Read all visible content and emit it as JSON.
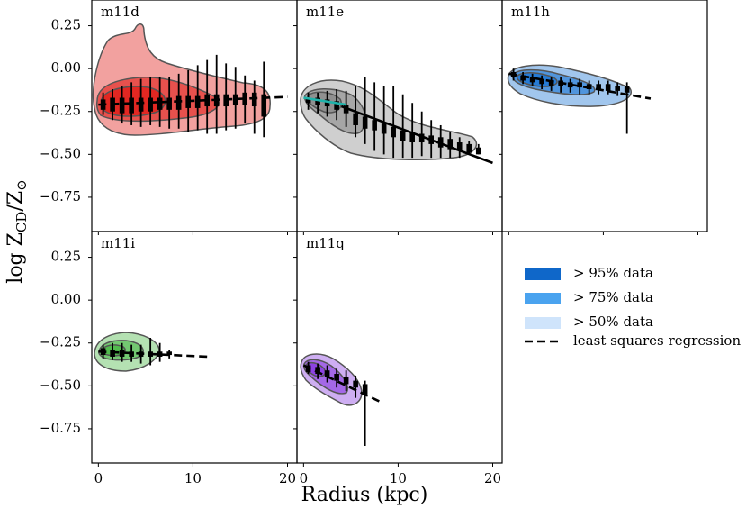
{
  "figure": {
    "xlabel": "Radius (kpc)",
    "ylabel": {
      "parts": [
        "log Z",
        "CD",
        "/Z",
        "⊙"
      ]
    },
    "legend": [
      {
        "name": "> 95% data",
        "color": "#0f67c9"
      },
      {
        "name": "> 75% data",
        "color": "#4aa3ef"
      },
      {
        "name": "> 50% data",
        "color": "#cfe4fb"
      },
      {
        "name": "least squares regression",
        "color": "#000000",
        "dashed": true
      }
    ]
  },
  "chart_data": [
    {
      "type": "box",
      "title": "m11d",
      "color": "#e0201b",
      "xlim": [
        -0.7,
        21
      ],
      "ylim": [
        -0.95,
        0.4
      ],
      "xticks": [
        0,
        10,
        20
      ],
      "xticklabels": false,
      "yticks": [
        {
          "value": 0.25,
          "label": "0.25"
        },
        {
          "value": 0,
          "label": "0.00"
        },
        {
          "value": -0.25,
          "label": "−0.25"
        },
        {
          "value": -0.5,
          "label": "−0.50"
        },
        {
          "value": -0.75,
          "label": "−0.75"
        }
      ],
      "x": [
        0.5,
        1.5,
        2.5,
        3.5,
        4.5,
        5.5,
        6.5,
        7.5,
        8.5,
        9.5,
        10.5,
        11.5,
        12.5,
        13.5,
        14.5,
        15.5,
        16.5,
        17.5
      ],
      "q1": [
        -0.24,
        -0.25,
        -0.26,
        -0.26,
        -0.25,
        -0.25,
        -0.24,
        -0.24,
        -0.24,
        -0.23,
        -0.23,
        -0.22,
        -0.22,
        -0.22,
        -0.21,
        -0.21,
        -0.22,
        -0.28
      ],
      "q3": [
        -0.18,
        -0.17,
        -0.17,
        -0.17,
        -0.17,
        -0.17,
        -0.17,
        -0.17,
        -0.16,
        -0.16,
        -0.16,
        -0.15,
        -0.15,
        -0.15,
        -0.15,
        -0.14,
        -0.14,
        -0.15
      ],
      "lo": [
        -0.27,
        -0.3,
        -0.32,
        -0.33,
        -0.34,
        -0.33,
        -0.34,
        -0.35,
        -0.35,
        -0.37,
        -0.36,
        -0.38,
        -0.38,
        -0.36,
        -0.35,
        -0.32,
        -0.38,
        -0.4
      ],
      "hi": [
        -0.14,
        -0.12,
        -0.1,
        -0.08,
        -0.06,
        -0.05,
        -0.05,
        -0.05,
        -0.03,
        -0.01,
        0.02,
        0.05,
        0.08,
        0.03,
        0.01,
        -0.04,
        -0.07,
        0.04
      ],
      "fits": [
        {
          "x": [
            0,
            20
          ],
          "y": [
            -0.21,
            -0.165
          ],
          "color": "#000000",
          "dashed": true
        }
      ]
    },
    {
      "type": "box",
      "title": "m11e",
      "color": "#8c8c8c",
      "xlim": [
        -0.7,
        21
      ],
      "ylim": [
        -0.95,
        0.4
      ],
      "xticks": [
        0,
        10,
        20
      ],
      "xticklabels": false,
      "yticks": [
        0.25,
        0,
        -0.25,
        -0.5,
        -0.75
      ],
      "x": [
        0.5,
        1.5,
        2.5,
        3.5,
        4.5,
        5.5,
        6.5,
        7.5,
        8.5,
        9.5,
        10.5,
        11.5,
        12.5,
        13.5,
        14.5,
        15.5,
        16.5,
        17.5,
        18.5
      ],
      "q1": [
        -0.2,
        -0.21,
        -0.22,
        -0.24,
        -0.26,
        -0.33,
        -0.35,
        -0.36,
        -0.38,
        -0.4,
        -0.42,
        -0.43,
        -0.43,
        -0.44,
        -0.46,
        -0.47,
        -0.48,
        -0.49,
        -0.5
      ],
      "q3": [
        -0.17,
        -0.17,
        -0.18,
        -0.19,
        -0.21,
        -0.26,
        -0.28,
        -0.3,
        -0.32,
        -0.34,
        -0.36,
        -0.37,
        -0.38,
        -0.39,
        -0.4,
        -0.41,
        -0.43,
        -0.44,
        -0.46
      ],
      "lo": [
        -0.24,
        -0.26,
        -0.28,
        -0.3,
        -0.34,
        -0.4,
        -0.44,
        -0.48,
        -0.5,
        -0.52,
        -0.52,
        -0.52,
        -0.51,
        -0.52,
        -0.52,
        -0.52,
        -0.52,
        -0.5,
        -0.5
      ],
      "hi": [
        -0.14,
        -0.14,
        -0.13,
        -0.12,
        -0.13,
        -0.1,
        -0.05,
        -0.08,
        -0.1,
        -0.1,
        -0.15,
        -0.2,
        -0.25,
        -0.3,
        -0.33,
        -0.37,
        -0.4,
        -0.42,
        -0.44
      ],
      "fits": [
        {
          "x": [
            4,
            20
          ],
          "y": [
            -0.22,
            -0.55
          ],
          "color": "#000000",
          "dashed": false
        },
        {
          "x": [
            0,
            4.5
          ],
          "y": [
            -0.17,
            -0.21
          ],
          "color": "#20b2aa",
          "dashed": false
        }
      ]
    },
    {
      "type": "box",
      "title": "m11h",
      "color": "#1f77d4",
      "xlim": [
        -0.7,
        21
      ],
      "ylim": [
        -0.95,
        0.4
      ],
      "xticks": [
        0,
        10,
        20
      ],
      "xticklabels": false,
      "yticks": [
        0.25,
        0,
        -0.25,
        -0.5,
        -0.75
      ],
      "x": [
        0.5,
        1.5,
        2.5,
        3.5,
        4.5,
        5.5,
        6.5,
        7.5,
        8.5,
        9.5,
        10.5,
        11.5,
        12.5
      ],
      "q1": [
        -0.05,
        -0.07,
        -0.08,
        -0.09,
        -0.1,
        -0.1,
        -0.11,
        -0.11,
        -0.12,
        -0.12,
        -0.13,
        -0.13,
        -0.14
      ],
      "q3": [
        -0.02,
        -0.04,
        -0.05,
        -0.06,
        -0.07,
        -0.07,
        -0.08,
        -0.08,
        -0.09,
        -0.09,
        -0.09,
        -0.1,
        -0.1
      ],
      "lo": [
        -0.07,
        -0.09,
        -0.1,
        -0.12,
        -0.13,
        -0.14,
        -0.14,
        -0.15,
        -0.15,
        -0.15,
        -0.15,
        -0.16,
        -0.38
      ],
      "hi": [
        0.0,
        -0.02,
        -0.03,
        -0.04,
        -0.05,
        -0.05,
        -0.06,
        -0.06,
        -0.07,
        -0.07,
        -0.07,
        -0.08,
        -0.08
      ],
      "fits": [
        {
          "x": [
            0,
            15
          ],
          "y": [
            -0.03,
            -0.175
          ],
          "color": "#000000",
          "dashed": true
        }
      ]
    },
    {
      "type": "box",
      "title": "m11i",
      "color": "#4cb848",
      "xlim": [
        -0.7,
        21
      ],
      "ylim": [
        -0.95,
        0.4
      ],
      "xticks": [
        0,
        10,
        20
      ],
      "xticklabels": true,
      "yticks": [
        {
          "value": 0.25,
          "label": "0.25"
        },
        {
          "value": 0,
          "label": "0.00"
        },
        {
          "value": -0.25,
          "label": "−0.25"
        },
        {
          "value": -0.5,
          "label": "−0.50"
        },
        {
          "value": -0.75,
          "label": "−0.75"
        }
      ],
      "x": [
        0.5,
        1.5,
        2.5,
        3.5,
        4.5,
        5.5,
        6.5,
        7.5
      ],
      "q1": [
        -0.32,
        -0.33,
        -0.33,
        -0.33,
        -0.33,
        -0.33,
        -0.33,
        -0.32
      ],
      "q3": [
        -0.28,
        -0.29,
        -0.29,
        -0.3,
        -0.3,
        -0.3,
        -0.3,
        -0.3
      ],
      "lo": [
        -0.34,
        -0.35,
        -0.36,
        -0.36,
        -0.37,
        -0.38,
        -0.36,
        -0.34
      ],
      "hi": [
        -0.26,
        -0.25,
        -0.25,
        -0.26,
        -0.26,
        -0.22,
        -0.25,
        -0.29
      ],
      "fits": [
        {
          "x": [
            0,
            11.5
          ],
          "y": [
            -0.3,
            -0.33
          ],
          "color": "#000000",
          "dashed": true
        }
      ]
    },
    {
      "type": "box",
      "title": "m11q",
      "color": "#8a3de0",
      "xlim": [
        -0.7,
        21
      ],
      "ylim": [
        -0.95,
        0.4
      ],
      "xticks": [
        0,
        10,
        20
      ],
      "xticklabels": true,
      "yticks": [
        0.25,
        0,
        -0.25,
        -0.5,
        -0.75
      ],
      "x": [
        0.5,
        1.5,
        2.5,
        3.5,
        4.5,
        5.5,
        6.5
      ],
      "q1": [
        -0.42,
        -0.43,
        -0.45,
        -0.47,
        -0.49,
        -0.51,
        -0.55
      ],
      "q3": [
        -0.38,
        -0.39,
        -0.41,
        -0.43,
        -0.45,
        -0.47,
        -0.49
      ],
      "lo": [
        -0.43,
        -0.46,
        -0.48,
        -0.51,
        -0.53,
        -0.57,
        -0.85
      ],
      "hi": [
        -0.36,
        -0.37,
        -0.38,
        -0.4,
        -0.41,
        -0.44,
        -0.47
      ],
      "fits": [
        {
          "x": [
            0,
            8
          ],
          "y": [
            -0.38,
            -0.59
          ],
          "color": "#000000",
          "dashed": true
        }
      ]
    }
  ]
}
